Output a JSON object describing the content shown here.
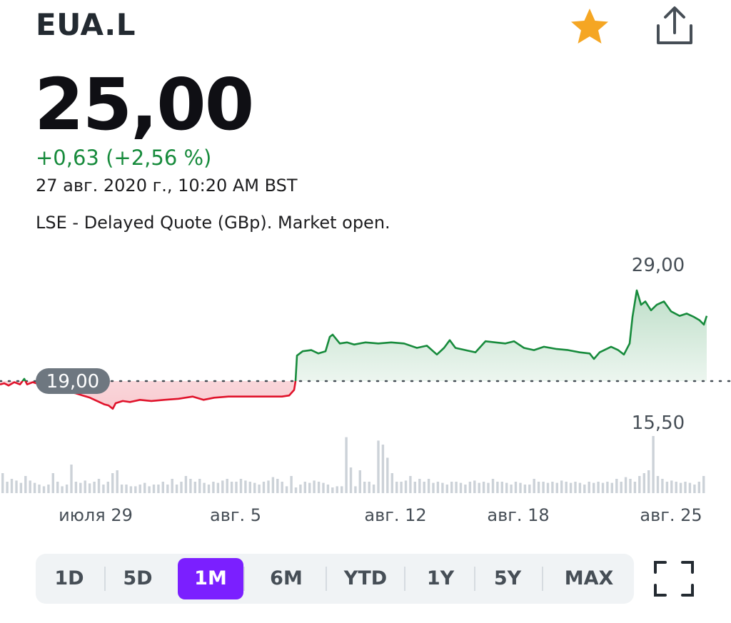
{
  "header": {
    "ticker": "EUA.L",
    "star_icon": "star-icon",
    "share_icon": "share-icon",
    "star_color": "#f5a623"
  },
  "quote": {
    "price": "25,00",
    "change": "+0,63 (+2,56 %)",
    "timestamp": "27 авг. 2020 г., 10:20 AM BST",
    "info": "LSE - Delayed Quote (GBp). Market open."
  },
  "colors": {
    "up": "#178b3c",
    "down": "#e0132b",
    "accent": "#7b1fff"
  },
  "chart_data": {
    "type": "line",
    "y_high_label": "29,00",
    "y_low_label": "15,50",
    "baseline_label": "19,00",
    "baseline_value": 19.0,
    "x_ticks": [
      "июля 29",
      "авг. 5",
      "авг. 12",
      "авг. 18",
      "авг. 25"
    ],
    "price_points": [
      [
        0,
        18.7
      ],
      [
        6,
        18.8
      ],
      [
        12,
        18.6
      ],
      [
        20,
        18.9
      ],
      [
        28,
        18.7
      ],
      [
        34,
        19.2
      ],
      [
        38,
        18.7
      ],
      [
        46,
        18.9
      ],
      [
        56,
        18.7
      ],
      [
        66,
        18.9
      ],
      [
        76,
        18.4
      ],
      [
        86,
        18.2
      ],
      [
        96,
        18.0
      ],
      [
        106,
        17.9
      ],
      [
        116,
        17.7
      ],
      [
        126,
        17.5
      ],
      [
        136,
        17.2
      ],
      [
        146,
        16.9
      ],
      [
        152,
        16.8
      ],
      [
        158,
        16.5
      ],
      [
        162,
        17.0
      ],
      [
        172,
        17.2
      ],
      [
        182,
        17.1
      ],
      [
        196,
        17.3
      ],
      [
        212,
        17.2
      ],
      [
        230,
        17.3
      ],
      [
        250,
        17.4
      ],
      [
        270,
        17.6
      ],
      [
        285,
        17.3
      ],
      [
        300,
        17.5
      ],
      [
        320,
        17.6
      ],
      [
        340,
        17.6
      ],
      [
        360,
        17.6
      ],
      [
        380,
        17.6
      ],
      [
        395,
        17.6
      ],
      [
        405,
        17.7
      ],
      [
        412,
        18.2
      ],
      [
        414,
        19.0
      ],
      [
        416,
        21.3
      ],
      [
        424,
        21.7
      ],
      [
        436,
        21.8
      ],
      [
        446,
        21.5
      ],
      [
        456,
        21.7
      ],
      [
        462,
        23.0
      ],
      [
        466,
        23.2
      ],
      [
        476,
        22.4
      ],
      [
        486,
        22.5
      ],
      [
        496,
        22.3
      ],
      [
        512,
        22.5
      ],
      [
        530,
        22.4
      ],
      [
        548,
        22.5
      ],
      [
        566,
        22.4
      ],
      [
        584,
        22.0
      ],
      [
        598,
        22.2
      ],
      [
        612,
        21.4
      ],
      [
        622,
        22.0
      ],
      [
        630,
        22.7
      ],
      [
        638,
        22.0
      ],
      [
        652,
        21.8
      ],
      [
        666,
        21.6
      ],
      [
        680,
        22.6
      ],
      [
        694,
        22.5
      ],
      [
        708,
        22.4
      ],
      [
        720,
        22.6
      ],
      [
        734,
        22.0
      ],
      [
        748,
        21.8
      ],
      [
        762,
        22.1
      ],
      [
        780,
        21.9
      ],
      [
        796,
        21.8
      ],
      [
        812,
        21.6
      ],
      [
        826,
        21.5
      ],
      [
        832,
        21.0
      ],
      [
        840,
        21.6
      ],
      [
        856,
        22.1
      ],
      [
        866,
        21.8
      ],
      [
        874,
        21.4
      ],
      [
        882,
        22.4
      ],
      [
        886,
        24.8
      ],
      [
        892,
        27.2
      ],
      [
        898,
        25.9
      ],
      [
        904,
        26.2
      ],
      [
        912,
        25.4
      ],
      [
        920,
        25.9
      ],
      [
        930,
        26.2
      ],
      [
        940,
        25.3
      ],
      [
        952,
        24.9
      ],
      [
        962,
        25.1
      ],
      [
        972,
        24.8
      ],
      [
        980,
        24.5
      ],
      [
        986,
        24.1
      ],
      [
        990,
        24.9
      ]
    ],
    "volume_series": [
      0.35,
      0.2,
      0.25,
      0.22,
      0.18,
      0.3,
      0.22,
      0.18,
      0.15,
      0.12,
      0.15,
      0.35,
      0.2,
      0.12,
      0.15,
      0.5,
      0.2,
      0.18,
      0.22,
      0.17,
      0.2,
      0.25,
      0.15,
      0.2,
      0.35,
      0.4,
      0.15,
      0.15,
      0.12,
      0.12,
      0.15,
      0.18,
      0.12,
      0.15,
      0.15,
      0.2,
      0.15,
      0.25,
      0.15,
      0.2,
      0.3,
      0.25,
      0.2,
      0.25,
      0.18,
      0.15,
      0.2,
      0.18,
      0.22,
      0.25,
      0.2,
      0.2,
      0.25,
      0.22,
      0.2,
      0.18,
      0.15,
      0.2,
      0.22,
      0.28,
      0.25,
      0.2,
      0.12,
      0.3,
      0.1,
      0.15,
      0.2,
      0.18,
      0.22,
      0.2,
      0.18,
      0.15,
      0.1,
      0.12,
      0.12,
      0.98,
      0.45,
      0.12,
      0.4,
      0.2,
      0.2,
      0.15,
      0.92,
      0.85,
      0.62,
      0.35,
      0.2,
      0.2,
      0.22,
      0.3,
      0.2,
      0.25,
      0.2,
      0.25,
      0.18,
      0.2,
      0.18,
      0.15,
      0.2,
      0.2,
      0.18,
      0.15,
      0.2,
      0.22,
      0.18,
      0.2,
      0.18,
      0.25,
      0.2,
      0.2,
      0.18,
      0.15,
      0.2,
      0.18,
      0.15,
      0.15,
      0.25,
      0.2,
      0.2,
      0.18,
      0.2,
      0.18,
      0.22,
      0.2,
      0.18,
      0.2,
      0.18,
      0.15,
      0.2,
      0.18,
      0.2,
      0.18,
      0.2,
      0.18,
      0.25,
      0.2,
      0.28,
      0.25,
      0.2,
      0.3,
      0.35,
      0.4,
      1.0,
      0.3,
      0.25,
      0.2,
      0.22,
      0.2,
      0.18,
      0.2,
      0.18,
      0.15,
      0.2,
      0.3
    ]
  },
  "ranges": {
    "items": [
      "1D",
      "5D",
      "1M",
      "6M",
      "YTD",
      "1Y",
      "5Y",
      "MAX"
    ],
    "active": "1M"
  },
  "fullscreen_icon": "expand-icon"
}
